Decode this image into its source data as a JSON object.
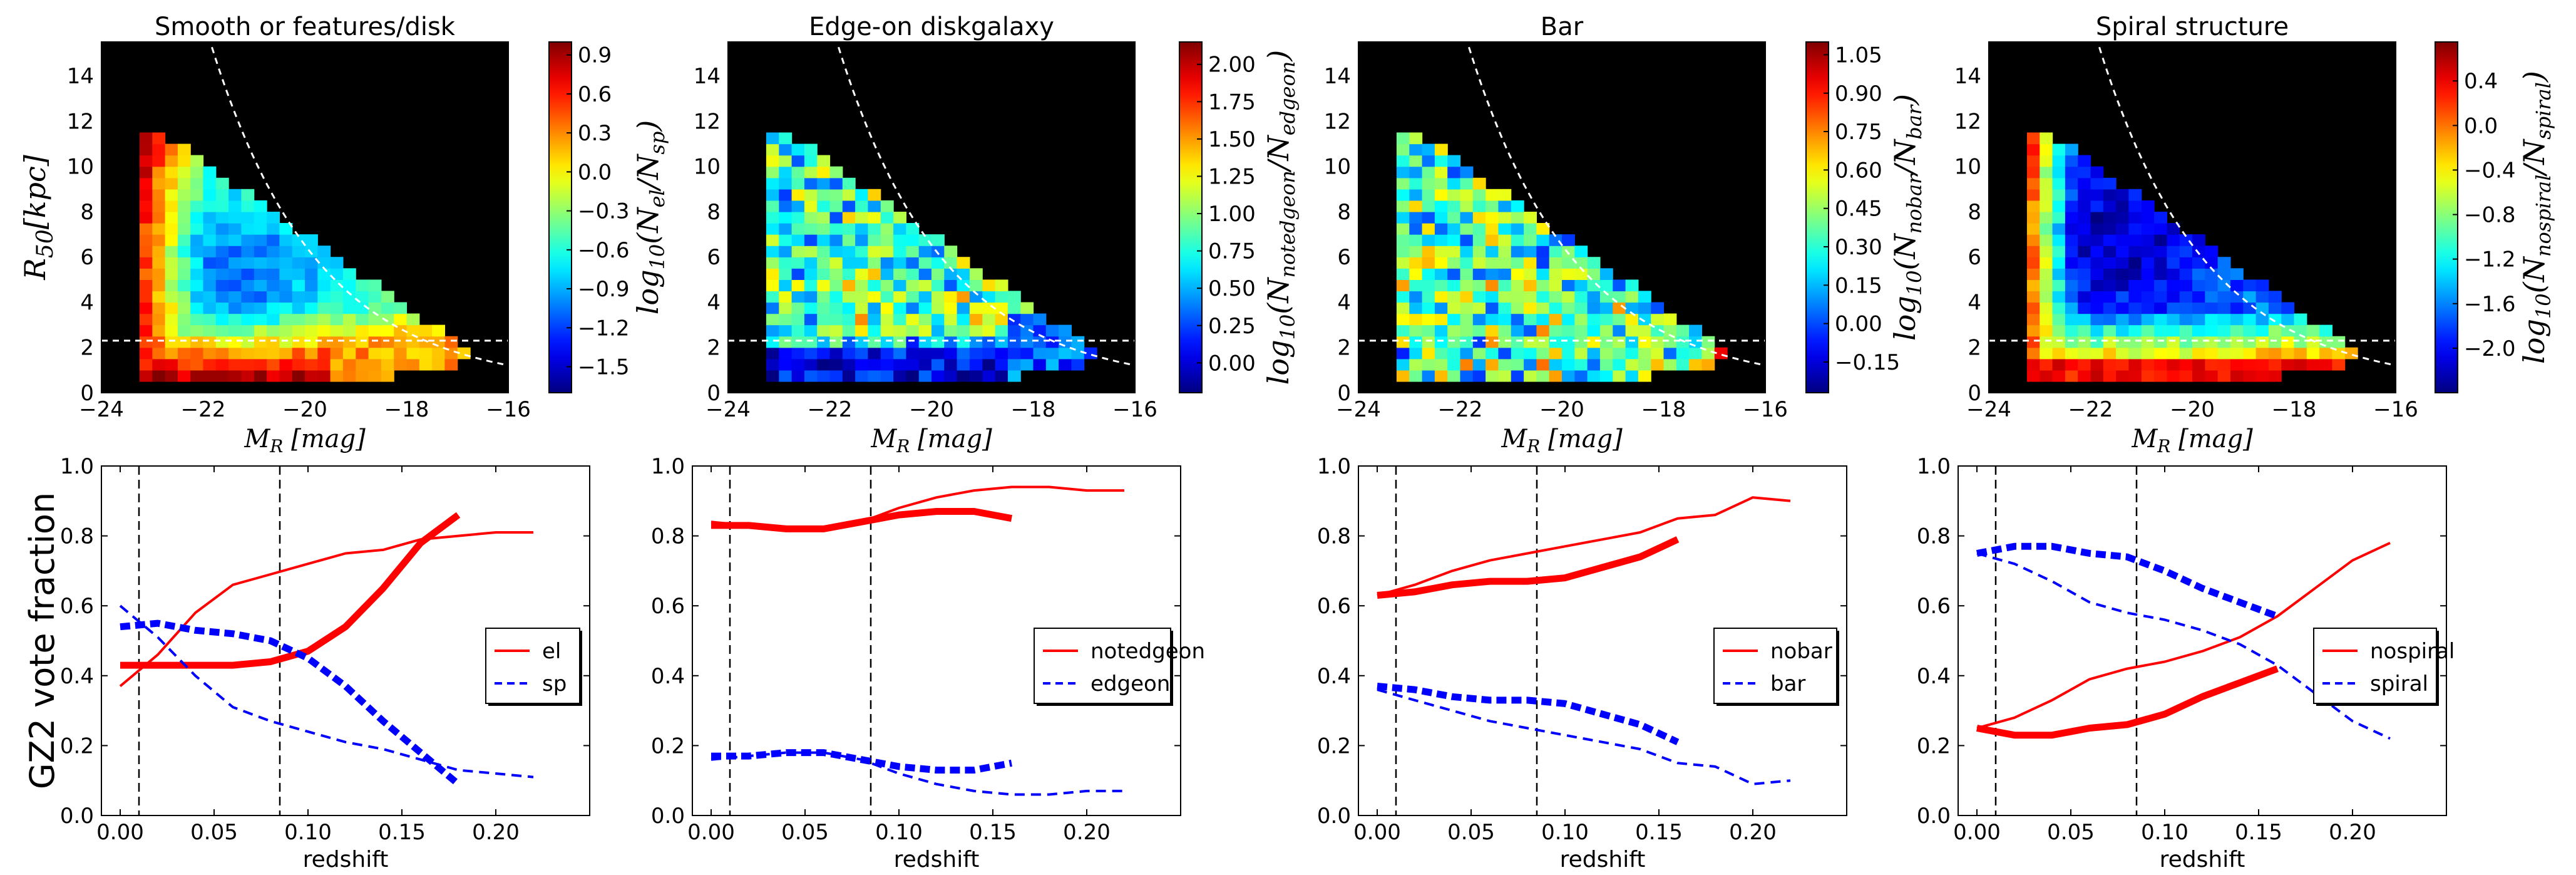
{
  "chart_data": [
    {
      "type": "heatmap",
      "panel": 0,
      "title": "Smooth or features/disk",
      "xlabel": "M_R [mag]",
      "ylabel": "R_50 [kpc]",
      "xlim": [
        -24,
        -16
      ],
      "ylim": [
        0,
        15.5
      ],
      "xticks": [
        "−24",
        "−22",
        "−20",
        "−18",
        "−16"
      ],
      "yticks": [
        "0",
        "2",
        "4",
        "6",
        "8",
        "10",
        "12",
        "14"
      ],
      "colorbar": {
        "label": "log10(N_el/N_sp)",
        "min": -1.7,
        "max": 1.0,
        "ticks": [
          "0.9",
          "0.6",
          "0.3",
          "0.0",
          "−0.3",
          "−0.6",
          "−0.9",
          "−1.2",
          "−1.5"
        ],
        "tick_values": [
          0.9,
          0.6,
          0.3,
          0.0,
          -0.3,
          -0.6,
          -0.9,
          -1.2,
          -1.5
        ]
      },
      "profile": "smooth",
      "hline_y": 2.3,
      "curve": "R50 limit (dashed white)"
    },
    {
      "type": "heatmap",
      "panel": 1,
      "title": "Edge-on diskgalaxy",
      "xlabel": "M_R [mag]",
      "xlim": [
        -24,
        -16
      ],
      "ylim": [
        0,
        15.5
      ],
      "xticks": [
        "−24",
        "−22",
        "−20",
        "−18",
        "−16"
      ],
      "yticks": [
        "0",
        "2",
        "4",
        "6",
        "8",
        "10",
        "12",
        "14"
      ],
      "colorbar": {
        "label": "log10(N_notedgeon/N_edgeon)",
        "min": -0.2,
        "max": 2.15,
        "ticks": [
          "2.00",
          "1.75",
          "1.50",
          "1.25",
          "1.00",
          "0.75",
          "0.50",
          "0.25",
          "0.00"
        ],
        "tick_values": [
          2.0,
          1.75,
          1.5,
          1.25,
          1.0,
          0.75,
          0.5,
          0.25,
          0.0
        ]
      },
      "profile": "edgeon",
      "hline_y": 2.3
    },
    {
      "type": "heatmap",
      "panel": 2,
      "title": "Bar",
      "xlabel": "M_R [mag]",
      "xlim": [
        -24,
        -16
      ],
      "ylim": [
        0,
        15.5
      ],
      "xticks": [
        "−24",
        "−22",
        "−20",
        "−18",
        "−16"
      ],
      "yticks": [
        "0",
        "2",
        "4",
        "6",
        "8",
        "10",
        "12",
        "14"
      ],
      "colorbar": {
        "label": "log10(N_nobar/N_bar)",
        "min": -0.27,
        "max": 1.1,
        "ticks": [
          "1.05",
          "0.90",
          "0.75",
          "0.60",
          "0.45",
          "0.30",
          "0.15",
          "0.00",
          "−0.15"
        ],
        "tick_values": [
          1.05,
          0.9,
          0.75,
          0.6,
          0.45,
          0.3,
          0.15,
          0.0,
          -0.15
        ]
      },
      "profile": "bar",
      "hline_y": 2.3
    },
    {
      "type": "heatmap",
      "panel": 3,
      "title": "Spiral structure",
      "xlabel": "M_R [mag]",
      "xlim": [
        -24,
        -16
      ],
      "ylim": [
        0,
        15.5
      ],
      "xticks": [
        "−24",
        "−22",
        "−20",
        "−18",
        "−16"
      ],
      "yticks": [
        "0",
        "2",
        "4",
        "6",
        "8",
        "10",
        "12",
        "14"
      ],
      "colorbar": {
        "label": "log10(N_nospiral/N_spiral)",
        "min": -2.4,
        "max": 0.75,
        "ticks": [
          "0.4",
          "0.0",
          "−0.4",
          "−0.8",
          "−1.2",
          "−1.6",
          "−2.0"
        ],
        "tick_values": [
          0.4,
          0.0,
          -0.4,
          -0.8,
          -1.2,
          -1.6,
          -2.0
        ]
      },
      "profile": "spiral",
      "hline_y": 2.3
    },
    {
      "type": "line",
      "panel": 0,
      "xlabel": "redshift",
      "ylabel": "GZ2 vote fraction",
      "xlim": [
        -0.01,
        0.25
      ],
      "ylim": [
        0,
        1.0
      ],
      "xticks": [
        "0.00",
        "0.05",
        "0.10",
        "0.15",
        "0.20"
      ],
      "yticks": [
        "0.0",
        "0.2",
        "0.4",
        "0.6",
        "0.8",
        "1.0"
      ],
      "vlines": [
        0.01,
        0.085
      ],
      "legend": {
        "placement": "center-right",
        "entries": [
          "el",
          "sp"
        ]
      },
      "series": [
        {
          "name": "el",
          "style": "thin-solid",
          "color": "#ff0000",
          "x": [
            0.0,
            0.02,
            0.04,
            0.06,
            0.08,
            0.1,
            0.12,
            0.14,
            0.16,
            0.18,
            0.2,
            0.22
          ],
          "y": [
            0.37,
            0.46,
            0.58,
            0.66,
            0.69,
            0.72,
            0.75,
            0.76,
            0.79,
            0.8,
            0.81,
            0.81
          ]
        },
        {
          "name": "el",
          "style": "thick-solid",
          "color": "#ff0000",
          "x": [
            0.0,
            0.02,
            0.04,
            0.06,
            0.08,
            0.1,
            0.12,
            0.14,
            0.16,
            0.18
          ],
          "y": [
            0.43,
            0.43,
            0.43,
            0.43,
            0.44,
            0.47,
            0.54,
            0.65,
            0.78,
            0.86
          ]
        },
        {
          "name": "sp",
          "style": "thin-dashed",
          "color": "#0000ff",
          "x": [
            0.0,
            0.02,
            0.04,
            0.06,
            0.08,
            0.1,
            0.12,
            0.14,
            0.16,
            0.18,
            0.2,
            0.22
          ],
          "y": [
            0.6,
            0.51,
            0.4,
            0.31,
            0.27,
            0.24,
            0.21,
            0.19,
            0.16,
            0.13,
            0.12,
            0.11
          ]
        },
        {
          "name": "sp",
          "style": "thick-dashed",
          "color": "#0000ff",
          "x": [
            0.0,
            0.02,
            0.04,
            0.06,
            0.08,
            0.1,
            0.12,
            0.14,
            0.16,
            0.18
          ],
          "y": [
            0.54,
            0.55,
            0.53,
            0.52,
            0.5,
            0.45,
            0.37,
            0.27,
            0.18,
            0.09
          ]
        }
      ]
    },
    {
      "type": "line",
      "panel": 1,
      "xlabel": "redshift",
      "xlim": [
        -0.01,
        0.25
      ],
      "ylim": [
        0,
        1.0
      ],
      "xticks": [
        "0.00",
        "0.05",
        "0.10",
        "0.15",
        "0.20"
      ],
      "yticks": [
        "0.0",
        "0.2",
        "0.4",
        "0.6",
        "0.8",
        "1.0"
      ],
      "vlines": [
        0.01,
        0.085
      ],
      "legend": {
        "placement": "center-right",
        "entries": [
          "notedgeon",
          "edgeon"
        ]
      },
      "series": [
        {
          "name": "notedgeon",
          "style": "thin-solid",
          "color": "#ff0000",
          "x": [
            0.0,
            0.02,
            0.04,
            0.06,
            0.08,
            0.1,
            0.12,
            0.14,
            0.16,
            0.18,
            0.2,
            0.22
          ],
          "y": [
            0.84,
            0.83,
            0.82,
            0.82,
            0.84,
            0.88,
            0.91,
            0.93,
            0.94,
            0.94,
            0.93,
            0.93
          ]
        },
        {
          "name": "notedgeon",
          "style": "thick-solid",
          "color": "#ff0000",
          "x": [
            0.0,
            0.02,
            0.04,
            0.06,
            0.08,
            0.1,
            0.12,
            0.14,
            0.16
          ],
          "y": [
            0.83,
            0.83,
            0.82,
            0.82,
            0.84,
            0.86,
            0.87,
            0.87,
            0.85
          ]
        },
        {
          "name": "edgeon",
          "style": "thin-dashed",
          "color": "#0000ff",
          "x": [
            0.0,
            0.02,
            0.04,
            0.06,
            0.08,
            0.1,
            0.12,
            0.14,
            0.16,
            0.18,
            0.2,
            0.22
          ],
          "y": [
            0.16,
            0.17,
            0.18,
            0.18,
            0.16,
            0.12,
            0.09,
            0.07,
            0.06,
            0.06,
            0.07,
            0.07
          ]
        },
        {
          "name": "edgeon",
          "style": "thick-dashed",
          "color": "#0000ff",
          "x": [
            0.0,
            0.02,
            0.04,
            0.06,
            0.08,
            0.1,
            0.12,
            0.14,
            0.16
          ],
          "y": [
            0.17,
            0.17,
            0.18,
            0.18,
            0.16,
            0.14,
            0.13,
            0.13,
            0.15
          ]
        }
      ]
    },
    {
      "type": "line",
      "panel": 2,
      "xlabel": "redshift",
      "xlim": [
        -0.01,
        0.25
      ],
      "ylim": [
        0,
        1.0
      ],
      "xticks": [
        "0.00",
        "0.05",
        "0.10",
        "0.15",
        "0.20"
      ],
      "yticks": [
        "0.0",
        "0.2",
        "0.4",
        "0.6",
        "0.8",
        "1.0"
      ],
      "vlines": [
        0.01,
        0.085
      ],
      "legend": {
        "placement": "center-right",
        "entries": [
          "nobar",
          "bar"
        ]
      },
      "series": [
        {
          "name": "nobar",
          "style": "thin-solid",
          "color": "#ff0000",
          "x": [
            0.0,
            0.02,
            0.04,
            0.06,
            0.08,
            0.1,
            0.12,
            0.14,
            0.16,
            0.18,
            0.2,
            0.22
          ],
          "y": [
            0.63,
            0.66,
            0.7,
            0.73,
            0.75,
            0.77,
            0.79,
            0.81,
            0.85,
            0.86,
            0.91,
            0.9
          ]
        },
        {
          "name": "nobar",
          "style": "thick-solid",
          "color": "#ff0000",
          "x": [
            0.0,
            0.02,
            0.04,
            0.06,
            0.08,
            0.1,
            0.12,
            0.14,
            0.16
          ],
          "y": [
            0.63,
            0.64,
            0.66,
            0.67,
            0.67,
            0.68,
            0.71,
            0.74,
            0.79
          ]
        },
        {
          "name": "bar",
          "style": "thin-dashed",
          "color": "#0000ff",
          "x": [
            0.0,
            0.02,
            0.04,
            0.06,
            0.08,
            0.1,
            0.12,
            0.14,
            0.16,
            0.18,
            0.2,
            0.22
          ],
          "y": [
            0.36,
            0.33,
            0.3,
            0.27,
            0.25,
            0.23,
            0.21,
            0.19,
            0.15,
            0.14,
            0.09,
            0.1
          ]
        },
        {
          "name": "bar",
          "style": "thick-dashed",
          "color": "#0000ff",
          "x": [
            0.0,
            0.02,
            0.04,
            0.06,
            0.08,
            0.1,
            0.12,
            0.14,
            0.16
          ],
          "y": [
            0.37,
            0.36,
            0.34,
            0.33,
            0.33,
            0.32,
            0.29,
            0.26,
            0.21
          ]
        }
      ]
    },
    {
      "type": "line",
      "panel": 3,
      "xlabel": "redshift",
      "xlim": [
        -0.01,
        0.25
      ],
      "ylim": [
        0,
        1.0
      ],
      "xticks": [
        "0.00",
        "0.05",
        "0.10",
        "0.15",
        "0.20"
      ],
      "yticks": [
        "0.0",
        "0.2",
        "0.4",
        "0.6",
        "0.8",
        "1.0"
      ],
      "vlines": [
        0.01,
        0.085
      ],
      "legend": {
        "placement": "center-right",
        "entries": [
          "nospiral",
          "spiral"
        ]
      },
      "series": [
        {
          "name": "nospiral",
          "style": "thin-solid",
          "color": "#ff0000",
          "x": [
            0.0,
            0.02,
            0.04,
            0.06,
            0.08,
            0.1,
            0.12,
            0.14,
            0.16,
            0.18,
            0.2,
            0.22
          ],
          "y": [
            0.25,
            0.28,
            0.33,
            0.39,
            0.42,
            0.44,
            0.47,
            0.51,
            0.57,
            0.65,
            0.73,
            0.78
          ]
        },
        {
          "name": "nospiral",
          "style": "thick-solid",
          "color": "#ff0000",
          "x": [
            0.0,
            0.02,
            0.04,
            0.06,
            0.08,
            0.1,
            0.12,
            0.14,
            0.16
          ],
          "y": [
            0.25,
            0.23,
            0.23,
            0.25,
            0.26,
            0.29,
            0.34,
            0.38,
            0.42
          ]
        },
        {
          "name": "spiral",
          "style": "thin-dashed",
          "color": "#0000ff",
          "x": [
            0.0,
            0.02,
            0.04,
            0.06,
            0.08,
            0.1,
            0.12,
            0.14,
            0.16,
            0.18,
            0.2,
            0.22
          ],
          "y": [
            0.75,
            0.72,
            0.67,
            0.61,
            0.58,
            0.56,
            0.53,
            0.49,
            0.43,
            0.35,
            0.27,
            0.22
          ]
        },
        {
          "name": "spiral",
          "style": "thick-dashed",
          "color": "#0000ff",
          "x": [
            0.0,
            0.02,
            0.04,
            0.06,
            0.08,
            0.1,
            0.12,
            0.14,
            0.16
          ],
          "y": [
            0.75,
            0.77,
            0.77,
            0.75,
            0.74,
            0.7,
            0.65,
            0.61,
            0.57
          ]
        }
      ]
    }
  ],
  "labels": {
    "top_ylabel_math": "R",
    "top_ylabel_sub": "50",
    "top_ylabel_rest": "[kpc]",
    "top_xlabel_math": "M",
    "top_xlabel_sub": "R",
    "top_xlabel_rest": " [mag]",
    "bottom_ylabel": "GZ2 vote fraction",
    "bottom_xlabel": "redshift",
    "cb_prefix": "log",
    "cb_prefix_sub": "10",
    "cb_labels": [
      {
        "num": "el",
        "den": "sp"
      },
      {
        "num": "notedgeon",
        "den": "edgeon"
      },
      {
        "num": "nobar",
        "den": "bar"
      },
      {
        "num": "nospiral",
        "den": "spiral"
      }
    ]
  }
}
